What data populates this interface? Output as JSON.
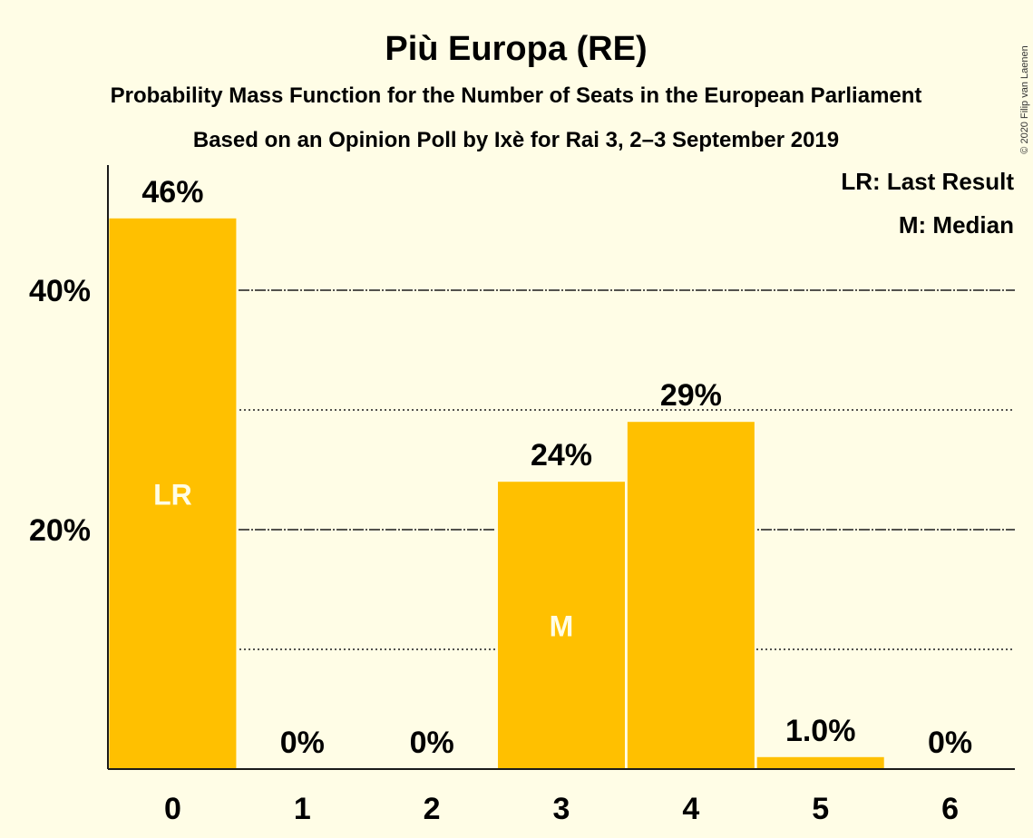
{
  "chart_data": {
    "type": "bar",
    "title": "Più Europa (RE)",
    "subtitle": "Probability Mass Function for the Number of Seats in the European Parliament",
    "subtitle2": "Based on an Opinion Poll by Ixè for Rai 3, 2–3 September 2019",
    "categories": [
      "0",
      "1",
      "2",
      "3",
      "4",
      "5",
      "6"
    ],
    "values": [
      46,
      0,
      0,
      24,
      29,
      1.0,
      0
    ],
    "value_labels": [
      "46%",
      "0%",
      "0%",
      "24%",
      "29%",
      "1.0%",
      "0%"
    ],
    "bar_markers": [
      {
        "category": "0",
        "text": "LR"
      },
      {
        "category": "3",
        "text": "M"
      }
    ],
    "yticks": [
      {
        "value": 20,
        "label": "20%"
      },
      {
        "value": 40,
        "label": "40%"
      }
    ],
    "minor_gridlines": [
      10,
      30
    ],
    "ylim": [
      0,
      50
    ],
    "legend": [
      "LR: Last Result",
      "M: Median"
    ],
    "legend_position": "top-right",
    "copyright": "© 2020 Filip van Laenen",
    "bar_color": "#FFC000"
  }
}
